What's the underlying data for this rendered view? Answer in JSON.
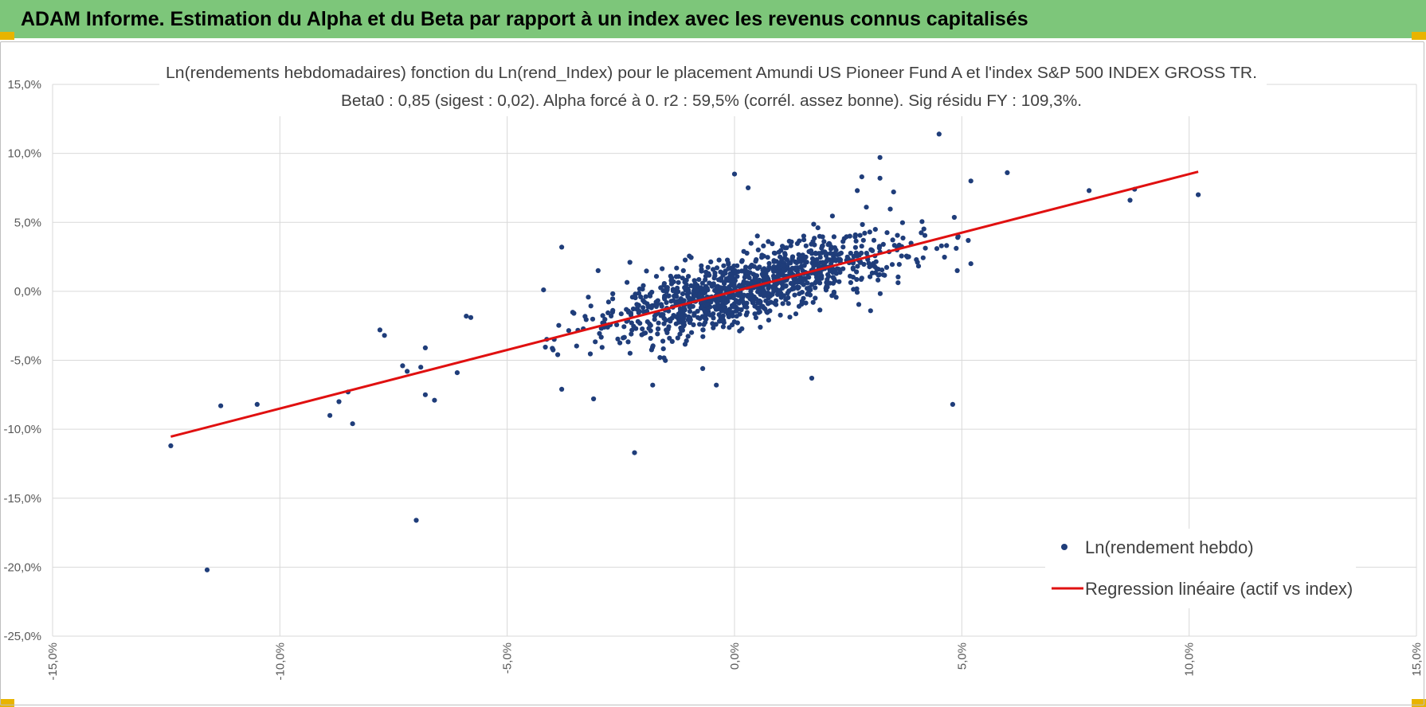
{
  "banner": {
    "title": "ADAM Informe. Estimation du Alpha et du Beta par rapport à un index avec les revenus connus capitalisés"
  },
  "colors": {
    "banner": "#7dc67a",
    "points": "#1f3d7a",
    "regression": "#e01010",
    "grid": "#d9d9d9"
  },
  "chart_data": {
    "type": "scatter",
    "title": [
      "Ln(rendements hebdomadaires) fonction du Ln(rend_Index) pour le placement Amundi US Pioneer Fund A  et l'index S&P 500 INDEX GROSS TR.",
      "Beta0 : 0,85  (sigest : 0,02). Alpha forcé à 0. r2 : 59,5% (corrél. assez bonne). Sig résidu FY : 109,3%."
    ],
    "xlim": [
      -15,
      15
    ],
    "ylim": [
      -25,
      15
    ],
    "xticks": [
      -15,
      -10,
      -5,
      0,
      5,
      10,
      15
    ],
    "yticks": [
      -25,
      -20,
      -15,
      -10,
      -5,
      0,
      5,
      10,
      15
    ],
    "xtick_labels": [
      "-15,0%",
      "-10,0%",
      "-5,0%",
      "0,0%",
      "5,0%",
      "10,0%",
      "15,0%"
    ],
    "ytick_labels": [
      "-25,0%",
      "-20,0%",
      "-15,0%",
      "-10,0%",
      "-5,0%",
      "0,0%",
      "5,0%",
      "10,0%",
      "15,0%"
    ],
    "grid": true,
    "legend_position": "lower-right",
    "series": [
      {
        "name": "Ln(rendement hebdo)",
        "kind": "scatter",
        "generated_cloud": {
          "count": 1150,
          "beta": 0.85,
          "x_mean": 0.3,
          "x_sd": 1.6,
          "resid_sd": 1.2,
          "seed": 7
        },
        "outliers": [
          {
            "x": -12.4,
            "y": -11.2
          },
          {
            "x": -11.6,
            "y": -20.2
          },
          {
            "x": -11.3,
            "y": -8.3
          },
          {
            "x": -10.5,
            "y": -8.2
          },
          {
            "x": -8.9,
            "y": -9.0
          },
          {
            "x": -8.7,
            "y": -8.0
          },
          {
            "x": -8.5,
            "y": -7.3
          },
          {
            "x": -8.4,
            "y": -9.6
          },
          {
            "x": -7.8,
            "y": -2.8
          },
          {
            "x": -7.7,
            "y": -3.2
          },
          {
            "x": -7.3,
            "y": -5.4
          },
          {
            "x": -7.2,
            "y": -5.8
          },
          {
            "x": -7.0,
            "y": -16.6
          },
          {
            "x": -6.9,
            "y": -5.5
          },
          {
            "x": -6.8,
            "y": -4.1
          },
          {
            "x": -6.8,
            "y": -7.5
          },
          {
            "x": -6.6,
            "y": -7.9
          },
          {
            "x": -6.1,
            "y": -5.9
          },
          {
            "x": -5.9,
            "y": -1.8
          },
          {
            "x": -5.8,
            "y": -1.9
          },
          {
            "x": -4.2,
            "y": 0.1
          },
          {
            "x": -3.8,
            "y": 3.2
          },
          {
            "x": -3.8,
            "y": -7.1
          },
          {
            "x": -3.1,
            "y": -7.8
          },
          {
            "x": -3.0,
            "y": 1.5
          },
          {
            "x": -2.3,
            "y": 2.1
          },
          {
            "x": -2.2,
            "y": -11.7
          },
          {
            "x": -1.8,
            "y": -6.8
          },
          {
            "x": -0.7,
            "y": -5.6
          },
          {
            "x": -0.4,
            "y": -6.8
          },
          {
            "x": 0.0,
            "y": 8.5
          },
          {
            "x": 0.3,
            "y": 7.5
          },
          {
            "x": 1.7,
            "y": -6.3
          },
          {
            "x": 2.7,
            "y": 7.3
          },
          {
            "x": 2.8,
            "y": 8.3
          },
          {
            "x": 2.9,
            "y": 6.1
          },
          {
            "x": 3.2,
            "y": 9.7
          },
          {
            "x": 3.2,
            "y": 8.2
          },
          {
            "x": 3.5,
            "y": 7.2
          },
          {
            "x": 4.5,
            "y": 11.4
          },
          {
            "x": 4.8,
            "y": -8.2
          },
          {
            "x": 4.9,
            "y": 1.5
          },
          {
            "x": 5.2,
            "y": 8.0
          },
          {
            "x": 5.2,
            "y": 2.0
          },
          {
            "x": 6.0,
            "y": 8.6
          },
          {
            "x": 7.8,
            "y": 7.3
          },
          {
            "x": 8.7,
            "y": 6.6
          },
          {
            "x": 8.8,
            "y": 7.4
          },
          {
            "x": 10.2,
            "y": 7.0
          }
        ]
      },
      {
        "name": "Regression linéaire (actif vs index)",
        "kind": "line",
        "slope": 0.85,
        "intercept": 0,
        "x_range": [
          -12.4,
          10.2
        ]
      }
    ]
  }
}
